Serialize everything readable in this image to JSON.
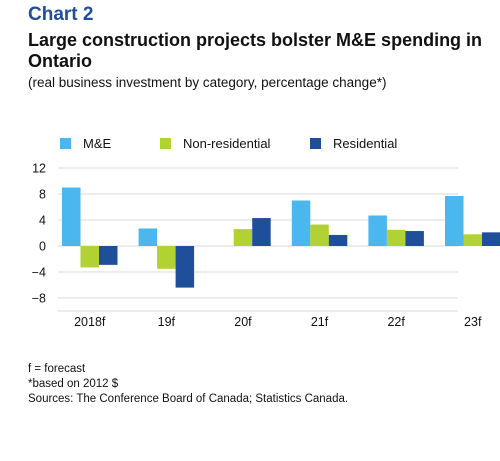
{
  "header": {
    "label": "Chart 2",
    "title": "Large construction projects bolster M&E spending in Ontario",
    "subtitle": "(real business investment by category, percentage change*)"
  },
  "colors": {
    "label": "#1f4e9b",
    "gridline": "#d9d9d9",
    "axis_text": "#111111"
  },
  "chart_data": {
    "type": "bar",
    "categories": [
      "2018f",
      "19f",
      "20f",
      "21f",
      "22f",
      "23f"
    ],
    "series": [
      {
        "name": "M&E",
        "color": "#4ab8ef",
        "values": [
          9.0,
          2.7,
          0.0,
          7.0,
          4.7,
          7.7
        ]
      },
      {
        "name": "Non-residential",
        "color": "#b2d234",
        "values": [
          -3.3,
          -3.5,
          2.6,
          3.3,
          2.5,
          1.8
        ]
      },
      {
        "name": "Residential",
        "color": "#1f4e9b",
        "values": [
          -2.9,
          -6.4,
          4.3,
          1.7,
          2.3,
          2.1
        ]
      }
    ],
    "yticks": [
      12,
      8,
      4,
      0,
      -4,
      -8
    ],
    "ylim": [
      -10,
      12
    ],
    "grid": true,
    "legend_position": "top"
  },
  "notes": [
    "f = forecast",
    "*based on 2012 $",
    "Sources: The Conference Board of Canada; Statistics Canada."
  ]
}
